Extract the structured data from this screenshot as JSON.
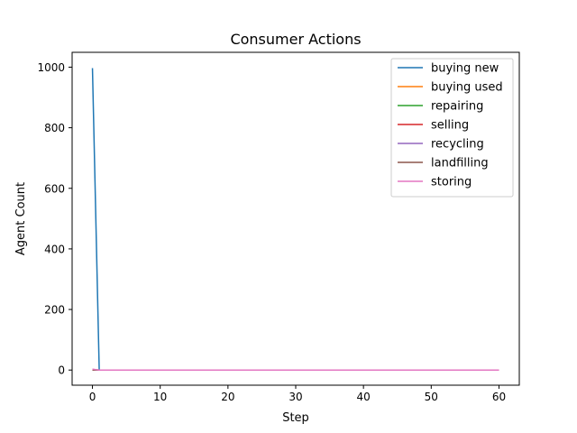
{
  "chart_data": {
    "type": "line",
    "title": "Consumer Actions",
    "xlabel": "Step",
    "ylabel": "Agent Count",
    "xlim": [
      -3,
      63
    ],
    "ylim": [
      -50,
      1049
    ],
    "xticks": [
      0,
      10,
      20,
      30,
      40,
      50,
      60
    ],
    "yticks": [
      0,
      200,
      400,
      600,
      800,
      1000
    ],
    "legend_position": "top-right",
    "grid": false,
    "series": [
      {
        "name": "buying new",
        "color": "#1f77b4",
        "x": [
          0,
          1,
          60
        ],
        "y": [
          997,
          0,
          0
        ]
      },
      {
        "name": "buying used",
        "color": "#ff7f0e",
        "x": [
          0,
          1,
          60
        ],
        "y": [
          2,
          0,
          0
        ]
      },
      {
        "name": "repairing",
        "color": "#2ca02c",
        "x": [
          0,
          1,
          60
        ],
        "y": [
          1,
          0,
          0
        ]
      },
      {
        "name": "selling",
        "color": "#d62728",
        "x": [
          0,
          1,
          60
        ],
        "y": [
          0,
          0,
          0
        ]
      },
      {
        "name": "recycling",
        "color": "#9467bd",
        "x": [
          0,
          1,
          60
        ],
        "y": [
          0,
          0,
          0
        ]
      },
      {
        "name": "landfilling",
        "color": "#8c564b",
        "x": [
          0,
          1,
          60
        ],
        "y": [
          0,
          0,
          0
        ]
      },
      {
        "name": "storing",
        "color": "#e377c2",
        "x": [
          0,
          1,
          60
        ],
        "y": [
          3,
          0,
          0
        ]
      }
    ]
  }
}
